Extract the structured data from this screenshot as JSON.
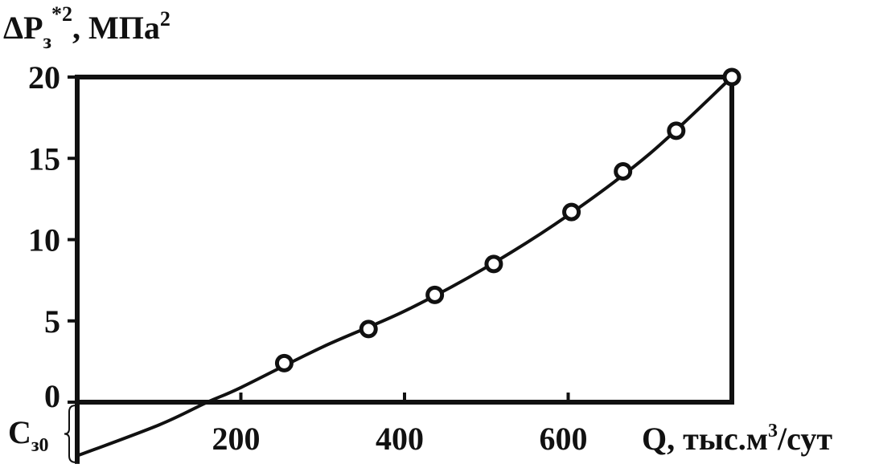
{
  "chart_data": {
    "type": "scatter",
    "y_label": {
      "main": "ΔP",
      "sub": "з",
      "sup": "*2",
      "rest": ", МПа",
      "sup2": "2"
    },
    "x_label": {
      "main": "Q, тыс.м",
      "sup": "3",
      "rest": "/сут"
    },
    "annotation": {
      "main": "C",
      "sub": "з0"
    },
    "xlim": [
      0,
      800
    ],
    "ylim": [
      -3.5,
      20
    ],
    "xticks": [
      200,
      400,
      600
    ],
    "yticks": [
      0,
      5,
      10,
      15,
      20
    ],
    "color": "#111111",
    "series": [
      {
        "type": "scatter",
        "x": [
          253,
          356,
          437,
          509,
          604,
          667,
          732,
          800
        ],
        "values": [
          2.4,
          4.5,
          6.6,
          8.5,
          11.7,
          14.2,
          16.7,
          20
        ]
      },
      {
        "type": "line",
        "x": [
          0,
          100,
          159,
          200,
          300,
          400,
          500,
          600,
          700,
          800
        ],
        "values": [
          -3.3,
          -1.4,
          0,
          0.9,
          3.4,
          5.6,
          8.3,
          11.5,
          15.3,
          20
        ]
      }
    ]
  }
}
